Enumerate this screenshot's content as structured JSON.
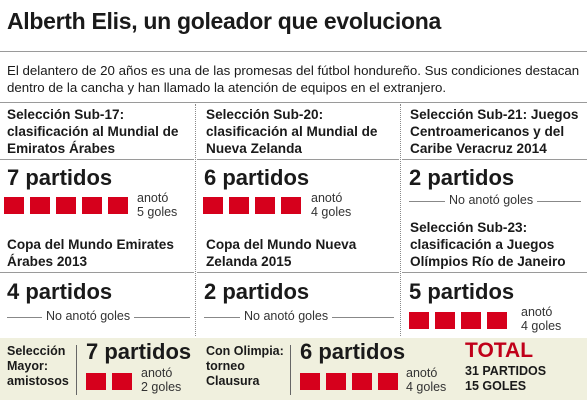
{
  "title": "Alberth Elis, un goleador que evoluciona",
  "intro": "El delantero de 20 años es una de las promesas del fútbol hondureño. Sus condiciones destacan dentro de la cancha y han llamado la atención de equipos en el extranjero.",
  "colors": {
    "accent_red": "#d6001c",
    "band_bg": "#f0f0de"
  },
  "col1": {
    "top_heading": "Selección Sub-17: clasificación al Mundial de Emiratos Árabes",
    "top_matches": "7 partidos",
    "top_goals_count": 5,
    "top_goals_line1": "anotó",
    "top_goals_line2": "5 goles",
    "bottom_heading": "Copa del Mundo Emirates Árabes 2013",
    "bottom_matches": "4 partidos",
    "bottom_note": "No anotó goles"
  },
  "col2": {
    "top_heading": "Selección Sub-20: clasificación al Mundial de Nueva Zelanda",
    "top_matches": "6 partidos",
    "top_goals_count": 4,
    "top_goals_line1": "anotó",
    "top_goals_line2": "4 goles",
    "bottom_heading": "Copa del Mundo Nueva Zelanda 2015",
    "bottom_matches": "2 partidos",
    "bottom_note": "No anotó goles"
  },
  "col3": {
    "top_heading": "Selección Sub-21: Juegos Centroamericanos y del Caribe Veracruz 2014",
    "top_matches": "2 partidos",
    "top_note": "No anotó goles",
    "bottom_heading": "Selección Sub-23: clasificación a Juegos Olímpios Río de Janeiro",
    "bottom_matches": "5 partidos",
    "bottom_goals_count": 4,
    "bottom_goals_line1": "anotó",
    "bottom_goals_line2": "4 goles"
  },
  "bottom": {
    "mayor_label": "Selección Mayor: amistosos",
    "mayor_matches": "7 partidos",
    "mayor_goals_count": 2,
    "mayor_goals_line1": "anotó",
    "mayor_goals_line2": "2 goles",
    "olimpia_label": "Con Olimpia: torneo Clausura",
    "olimpia_matches": "6 partidos",
    "olimpia_goals_count": 4,
    "olimpia_goals_line1": "anotó",
    "olimpia_goals_line2": "4 goles",
    "total_label": "TOTAL",
    "total_matches": "31 PARTIDOS",
    "total_goals": "15 GOLES"
  }
}
